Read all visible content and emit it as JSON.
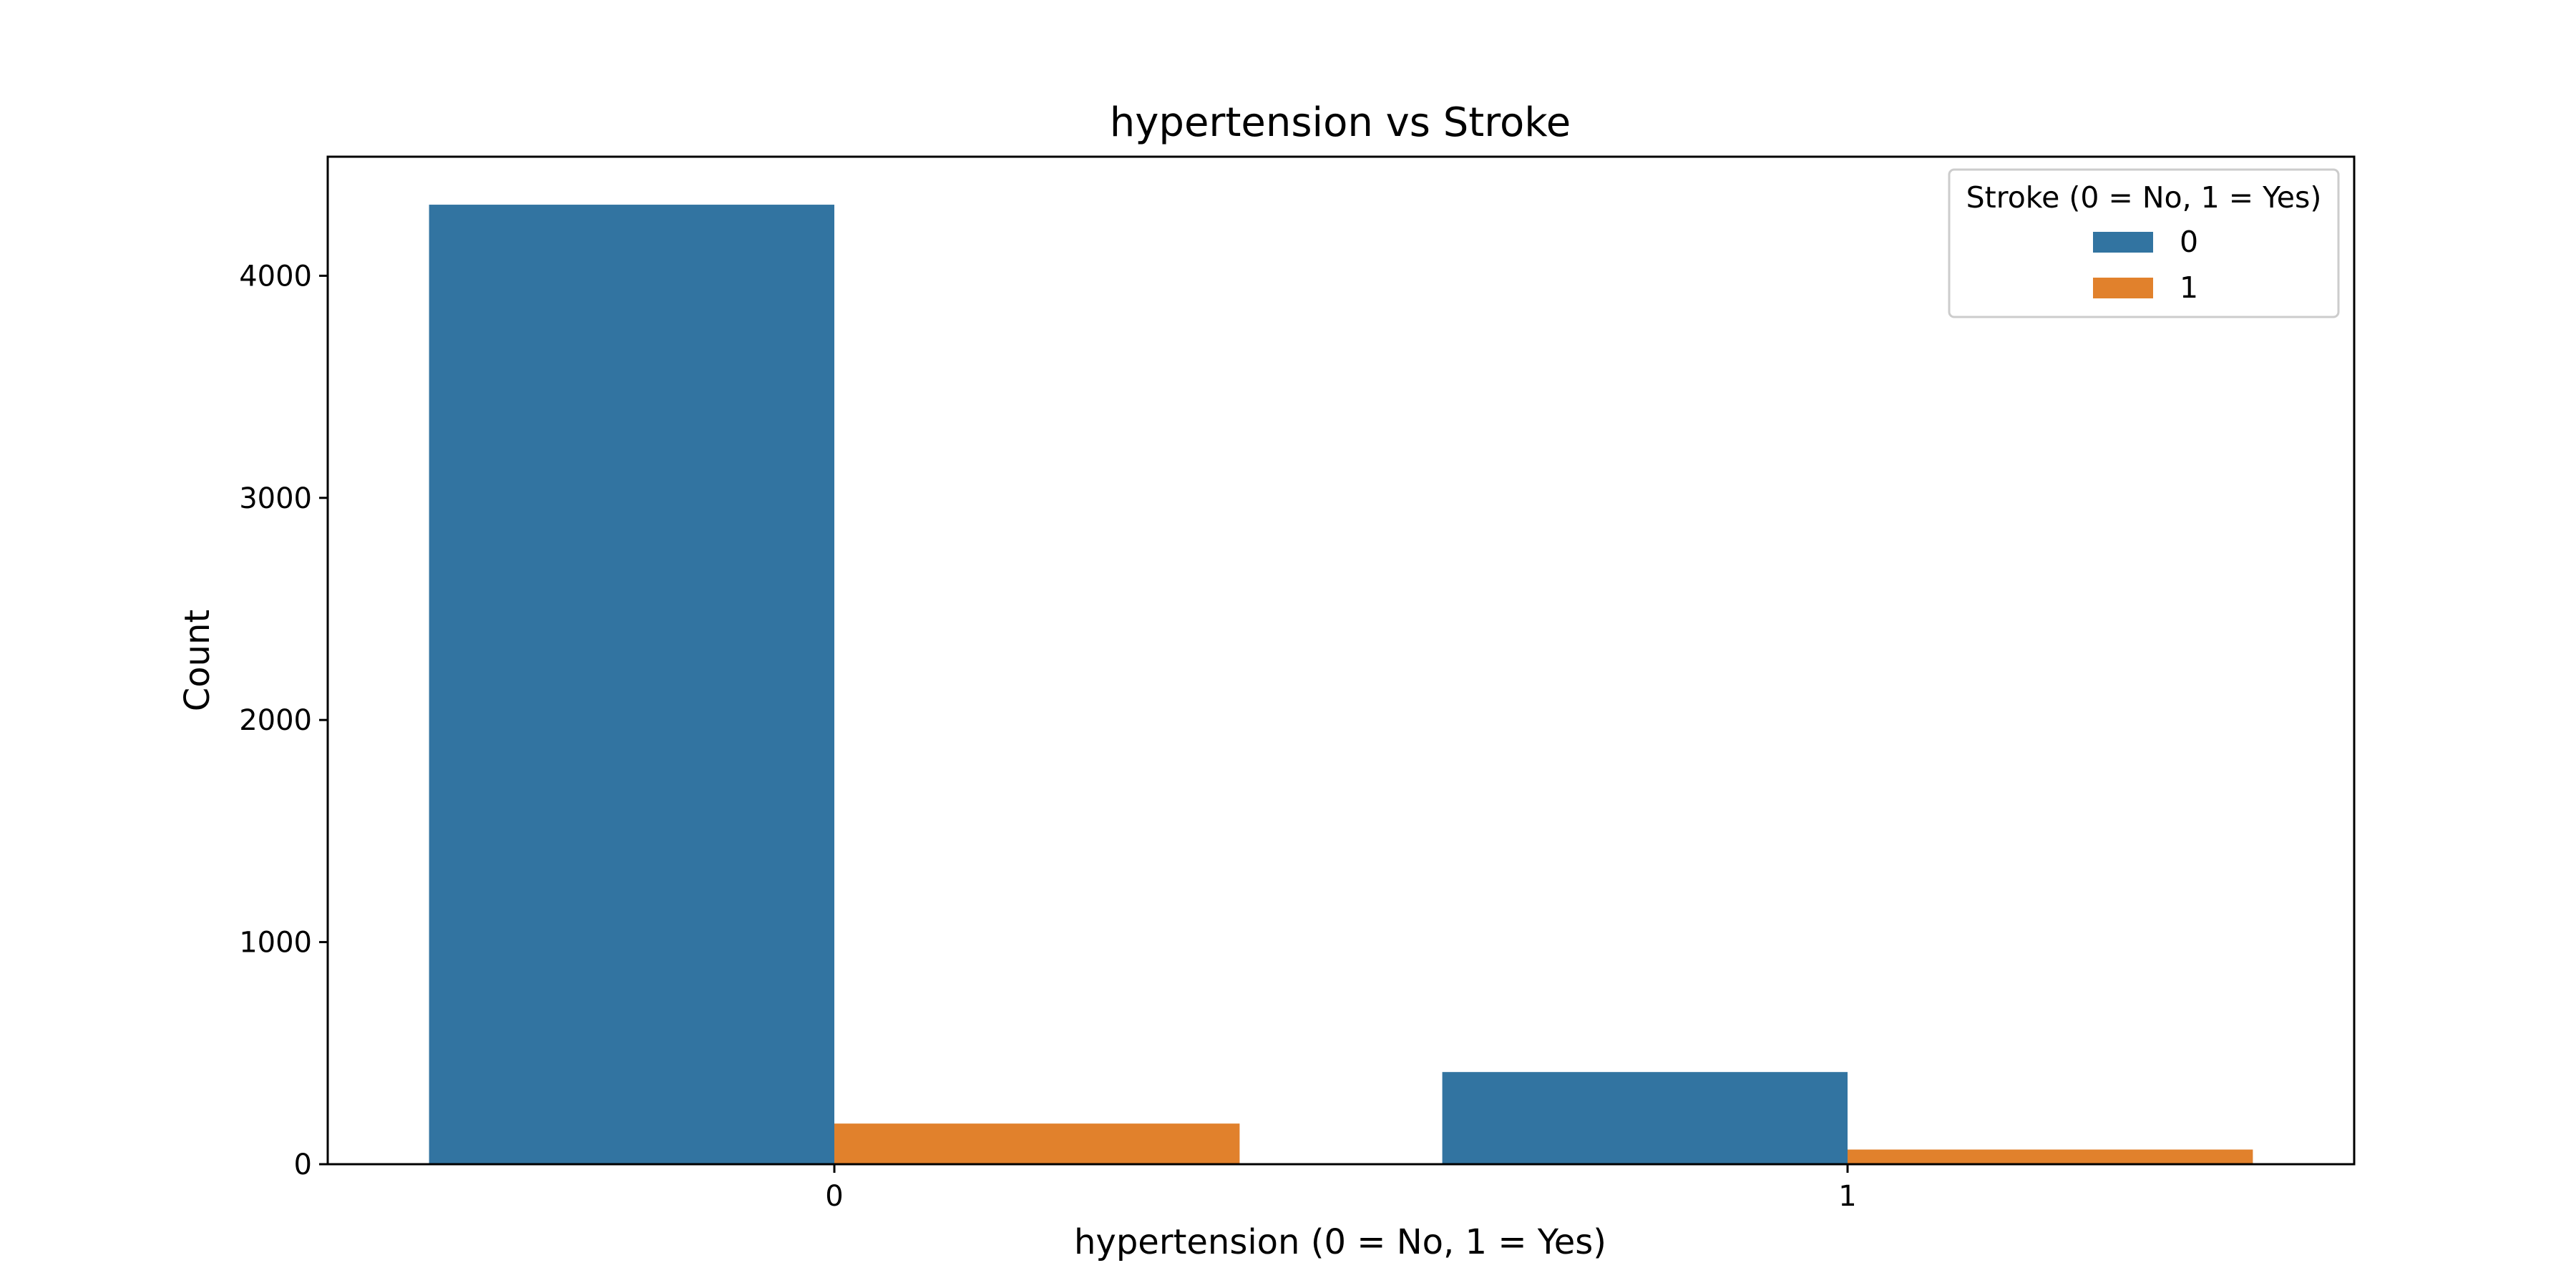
{
  "chart_data": {
    "type": "bar",
    "title": "hypertension vs Stroke",
    "xlabel": "hypertension (0 = No, 1 = Yes)",
    "ylabel": "Count",
    "categories": [
      "0",
      "1"
    ],
    "series": [
      {
        "name": "0",
        "color": "#3274a1",
        "values": [
          4320,
          415
        ]
      },
      {
        "name": "1",
        "color": "#e1812c",
        "values": [
          183,
          66
        ]
      }
    ],
    "ylim": [
      0,
      4536
    ],
    "yticks": [
      0,
      1000,
      2000,
      3000,
      4000
    ],
    "legend": {
      "title": "Stroke (0 = No, 1 = Yes)",
      "placement": "top-right"
    },
    "grid": false
  }
}
